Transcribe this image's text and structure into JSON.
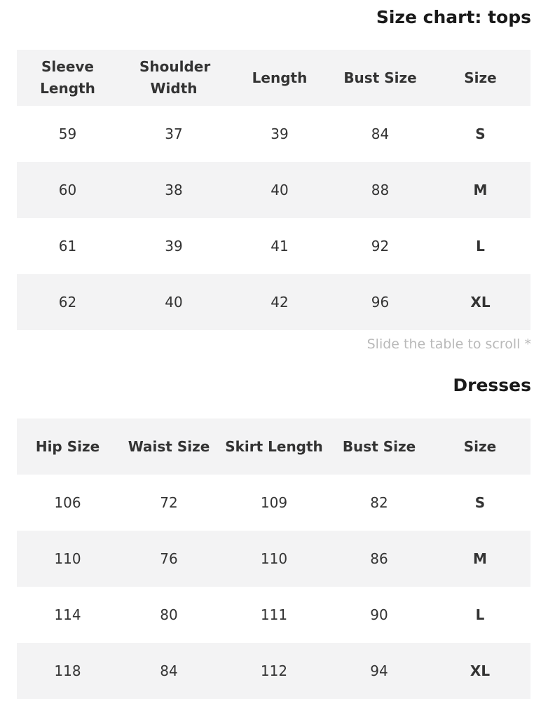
{
  "tops": {
    "title": "Size chart: tops",
    "headers": [
      "Sleeve Length",
      "Shoulder Width",
      "Length",
      "Bust Size",
      "Size"
    ],
    "rows": [
      [
        "59",
        "37",
        "39",
        "84",
        "S"
      ],
      [
        "60",
        "38",
        "40",
        "88",
        "M"
      ],
      [
        "61",
        "39",
        "41",
        "92",
        "L"
      ],
      [
        "62",
        "40",
        "42",
        "96",
        "XL"
      ]
    ]
  },
  "note": "Slide the table to scroll *",
  "dresses": {
    "title": "Dresses",
    "headers": [
      "Hip Size",
      "Waist Size",
      "Skirt Length",
      "Bust Size",
      "Size"
    ],
    "rows": [
      [
        "106",
        "72",
        "109",
        "82",
        "S"
      ],
      [
        "110",
        "76",
        "110",
        "86",
        "M"
      ],
      [
        "114",
        "80",
        "111",
        "90",
        "L"
      ],
      [
        "118",
        "84",
        "112",
        "94",
        "XL"
      ]
    ]
  }
}
